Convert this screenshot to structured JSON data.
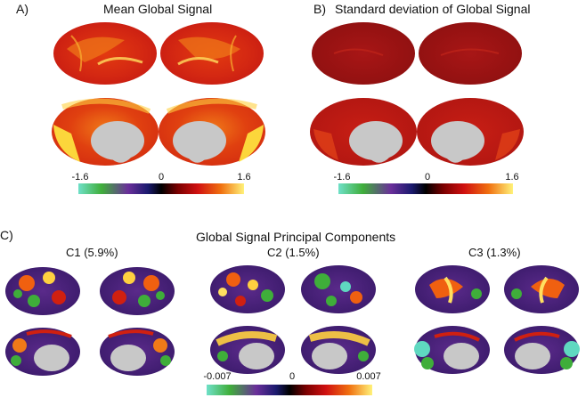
{
  "panels": {
    "a": {
      "label": "A)",
      "title": "Mean Global Signal",
      "colorbar": {
        "min": "-1.6",
        "mid": "0",
        "max": "1.6"
      }
    },
    "b": {
      "label": "B)",
      "title": "Standard deviation of Global Signal",
      "colorbar": {
        "min": "-1.6",
        "mid": "0",
        "max": "1.6"
      }
    },
    "c": {
      "label": "C)",
      "title": "Global Signal Principal Components",
      "components": [
        {
          "label": "C1 (5.9%)"
        },
        {
          "label": "C2 (1.5%)"
        },
        {
          "label": "C3 (1.3%)"
        }
      ],
      "colorbar": {
        "min": "-0.007",
        "mid": "0",
        "max": "0.007"
      }
    }
  },
  "colorscale": [
    "#5fd8c0",
    "#3fae3a",
    "#6a2f9a",
    "#1a1a6e",
    "#000000",
    "#7a0000",
    "#d01010",
    "#f06a10",
    "#fff27a"
  ]
}
